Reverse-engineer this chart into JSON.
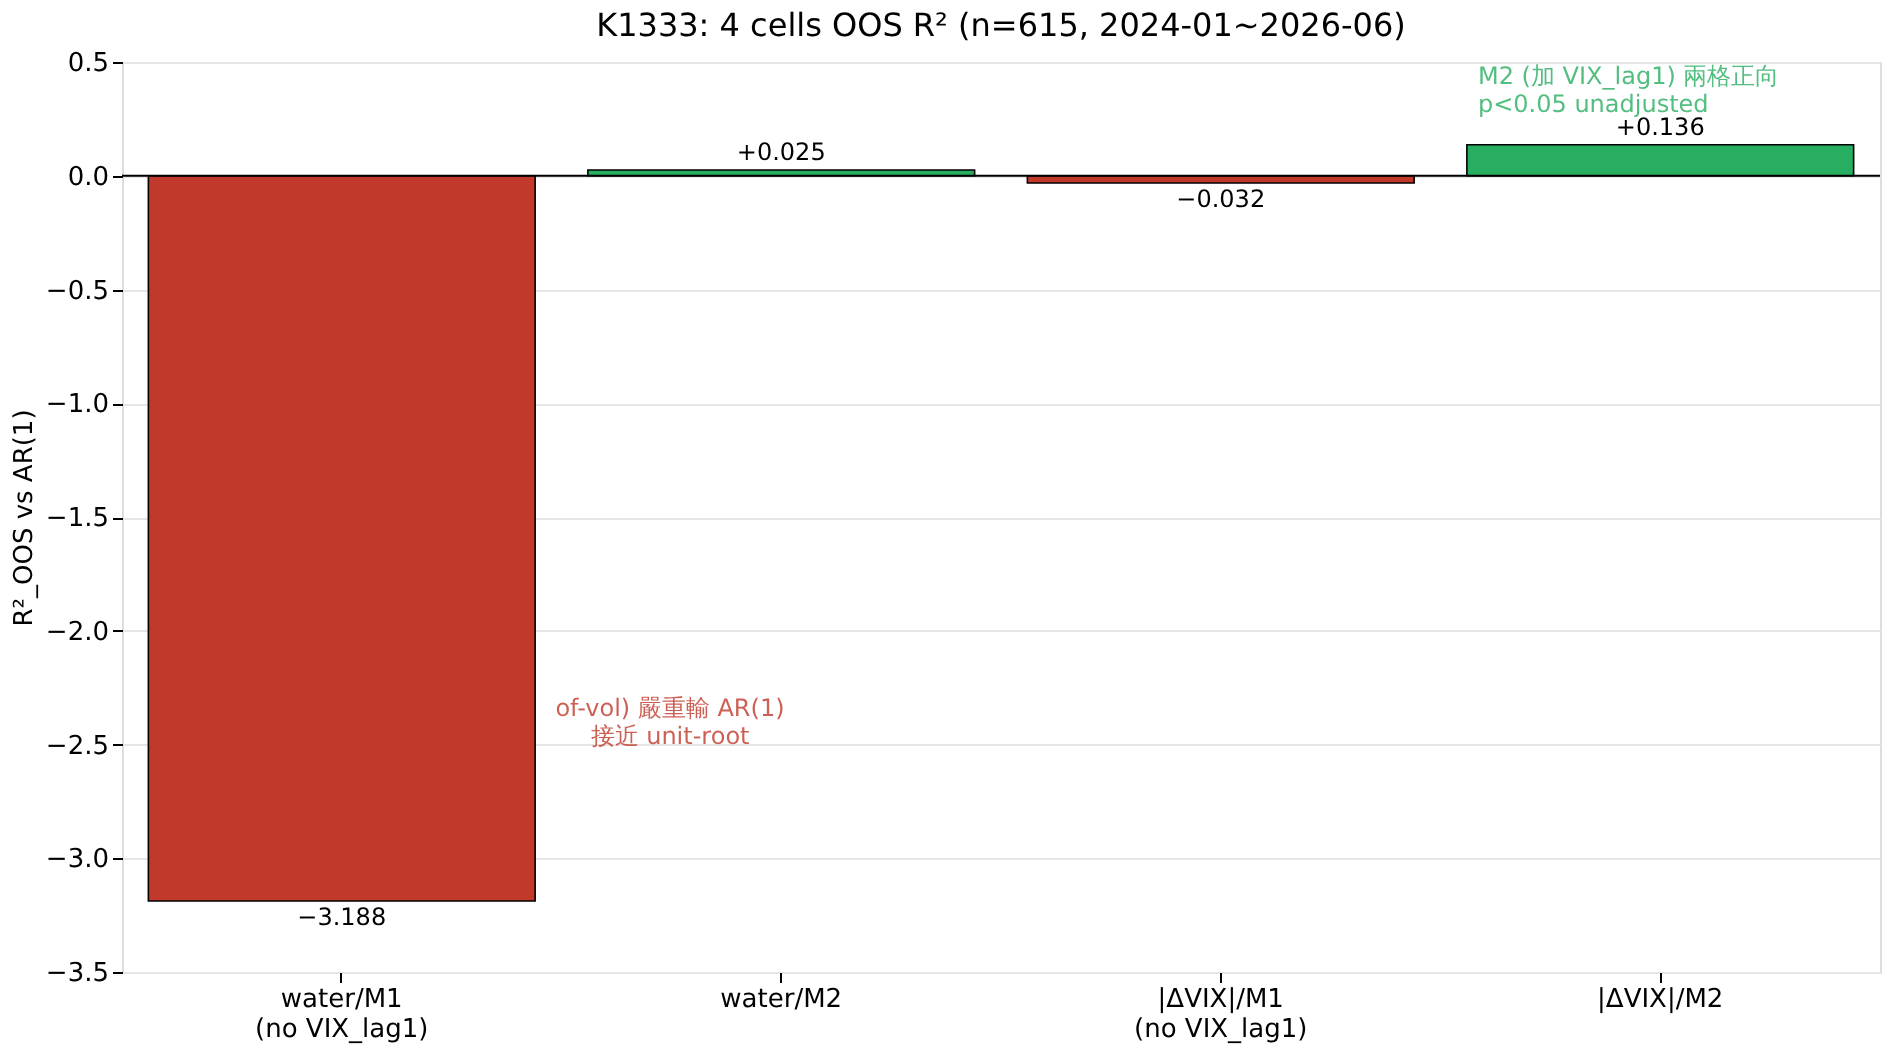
{
  "chart_data": {
    "type": "bar",
    "title": "K1333: 4 cells OOS R² (n=615, 2024-01~2026-06)",
    "ylabel": "R²_OOS vs AR(1)",
    "categories": [
      "water/M1\n(no VIX_lag1)",
      "water/M2",
      "|ΔVIX|/M1\n(no VIX_lag1)",
      "|ΔVIX|/M2"
    ],
    "values": [
      -3.188,
      0.025,
      -0.032,
      0.136
    ],
    "colors": [
      "#c0392b",
      "#27ae60",
      "#c0392b",
      "#27ae60"
    ],
    "value_labels": [
      "−3.188",
      "+0.025",
      "−0.032",
      "+0.136"
    ],
    "ylim": [
      -3.5,
      0.5
    ],
    "yticks": [
      {
        "value": -3.5,
        "label": "−3.5"
      },
      {
        "value": -3.0,
        "label": "−3.0"
      },
      {
        "value": -2.5,
        "label": "−2.5"
      },
      {
        "value": -2.0,
        "label": "−2.0"
      },
      {
        "value": -1.5,
        "label": "−1.5"
      },
      {
        "value": -1.0,
        "label": "−1.0"
      },
      {
        "value": -0.5,
        "label": "−0.5"
      },
      {
        "value": 0,
        "label": "0.0"
      },
      {
        "value": 0.5,
        "label": "0.5"
      }
    ],
    "grid": "y",
    "ref_lines": [
      {
        "axis": "y",
        "value": 0,
        "color": "#000000"
      }
    ],
    "annotations": [
      "of-vol) 嚴重輸 AR(1)\n接近 unit-root",
      "M2 (加 VIX_lag1) 兩格正向\np<0.05 unadjusted"
    ]
  }
}
